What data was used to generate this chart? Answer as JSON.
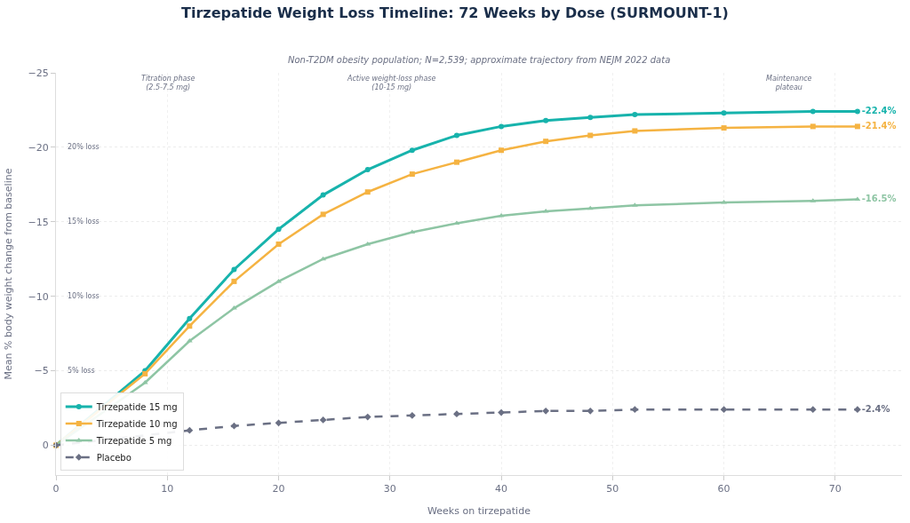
{
  "chart_data": {
    "type": "line",
    "title": "Tirzepatide Weight Loss Timeline: 72 Weeks by Dose (SURMOUNT-1)",
    "subtitle": "Non-T2DM obesity population; N=2,539; approximate trajectory from NEJM 2022 data",
    "xlabel": "Weeks on tirzepatide",
    "ylabel": "Mean % body weight change from baseline",
    "x": [
      0,
      8,
      12,
      16,
      20,
      24,
      28,
      32,
      36,
      40,
      44,
      48,
      52,
      60,
      68,
      72
    ],
    "series": [
      {
        "name": "Tirzepatide 15 mg",
        "color": "#17b3ac",
        "marker": "circle",
        "values": [
          0,
          -5,
          -8.5,
          -11.8,
          -14.5,
          -16.8,
          -18.5,
          -19.8,
          -20.8,
          -21.4,
          -21.8,
          -22,
          -22.2,
          -22.3,
          -22.4,
          -22.4
        ],
        "value_labels": [
          null,
          null,
          null,
          null,
          null,
          null,
          null,
          null,
          null,
          null,
          null,
          null,
          null,
          null,
          null,
          "-22.4%"
        ]
      },
      {
        "name": "Tirzepatide 10 mg",
        "color": "#f5b342",
        "marker": "square",
        "values": [
          0,
          -4.8,
          -8,
          -11,
          -13.5,
          -15.5,
          -17,
          -18.2,
          -19,
          -19.8,
          -20.4,
          -20.8,
          -21.1,
          -21.3,
          -21.4,
          -21.4
        ],
        "value_labels": [
          null,
          null,
          null,
          null,
          null,
          null,
          null,
          null,
          null,
          null,
          null,
          null,
          null,
          null,
          null,
          "-21.4%"
        ]
      },
      {
        "name": "Tirzepatide 5 mg",
        "color": "#8ec5a4",
        "marker": "triangle",
        "values": [
          0,
          -4.2,
          -7,
          -9.2,
          -11,
          -12.5,
          -13.5,
          -14.3,
          -14.9,
          -15.4,
          -15.7,
          -15.9,
          -16.1,
          -16.3,
          -16.4,
          -16.5
        ],
        "value_labels": [
          null,
          null,
          null,
          null,
          null,
          null,
          null,
          null,
          null,
          null,
          null,
          null,
          null,
          null,
          null,
          "-16.5%"
        ]
      },
      {
        "name": "Placebo",
        "color": "#6b7084",
        "marker": "diamond",
        "line_style": "dashed",
        "x": [
          0,
          12,
          16,
          20,
          24,
          28,
          32,
          36,
          40,
          44,
          48,
          52,
          60,
          68,
          72
        ],
        "values": [
          0,
          -1.0,
          -1.3,
          -1.5,
          -1.7,
          -1.9,
          -2.0,
          -2.1,
          -2.2,
          -2.3,
          -2.3,
          -2.4,
          -2.4,
          -2.4,
          -2.4
        ],
        "value_labels": [
          null,
          null,
          null,
          null,
          null,
          null,
          null,
          null,
          null,
          null,
          null,
          null,
          null,
          null,
          "-2.4%"
        ]
      }
    ],
    "xlim": [
      0,
      76
    ],
    "xticks": [
      0,
      10,
      20,
      30,
      40,
      50,
      60,
      70
    ],
    "ylim": [
      2,
      -25
    ],
    "yticks": [
      {
        "value": 0,
        "label": "0"
      },
      {
        "value": -5,
        "label": "−5"
      },
      {
        "value": -10,
        "label": "−10"
      },
      {
        "value": -15,
        "label": "−15"
      },
      {
        "value": -20,
        "label": "−20"
      },
      {
        "value": -25,
        "label": "−25"
      }
    ],
    "annotations": [
      "5% loss",
      "10% loss",
      "15% loss",
      "20% loss",
      "Titration phase\n(2.5-7.5 mg)",
      "Active weight-loss phase\n(10-15 mg)",
      "Maintenance\nplateau"
    ],
    "grid": true,
    "legend": "bottom left"
  }
}
